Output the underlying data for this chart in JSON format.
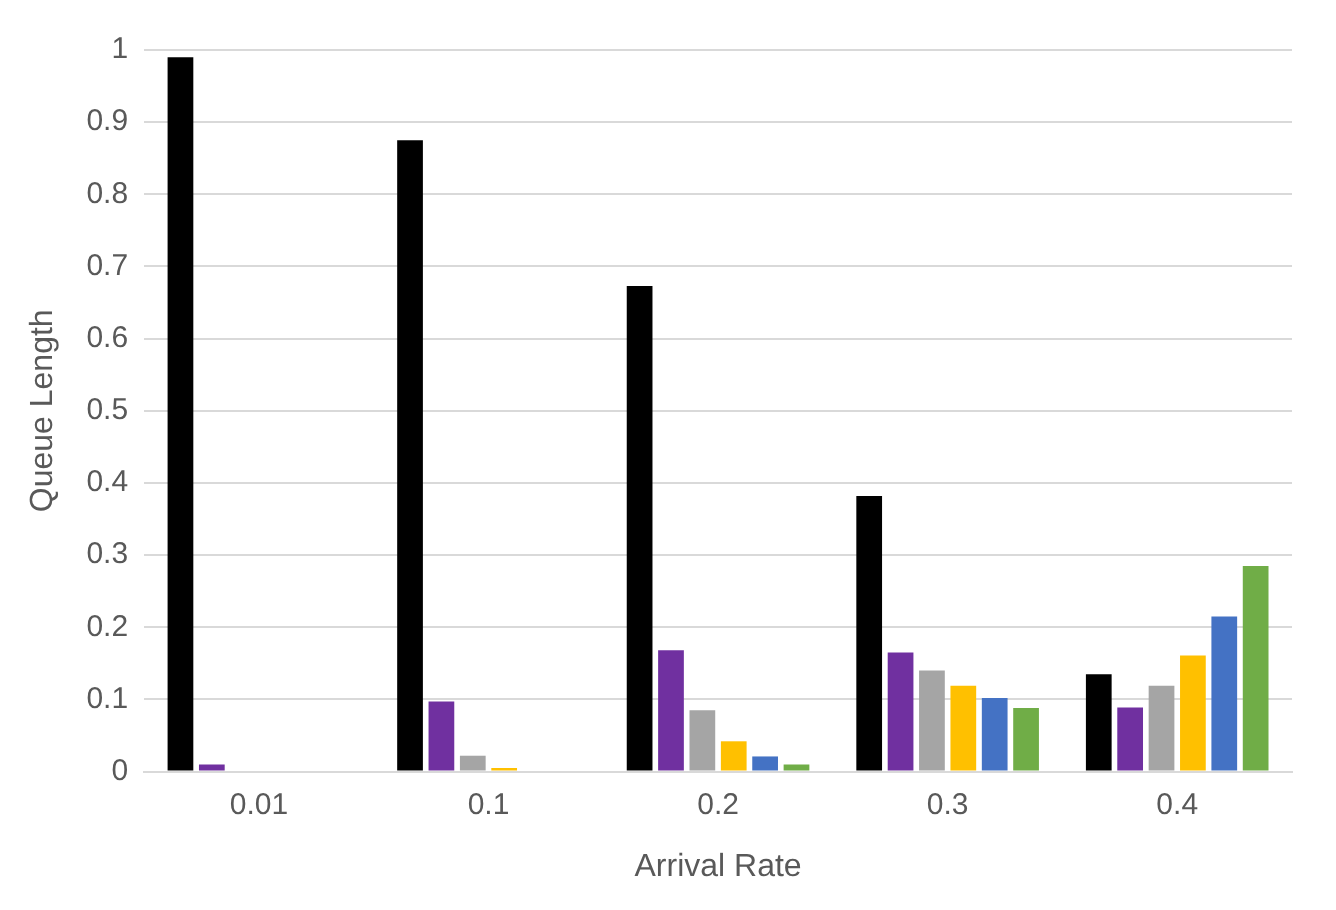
{
  "chart_data": {
    "type": "bar",
    "xlabel": "Arrival Rate",
    "ylabel": "Queue Length",
    "categories": [
      "0.01",
      "0.1",
      "0.2",
      "0.3",
      "0.4"
    ],
    "series": [
      {
        "color": "#000000",
        "values": [
          0.99,
          0.875,
          0.673,
          0.382,
          0.135
        ]
      },
      {
        "color": "#7030a0",
        "values": [
          0.01,
          0.097,
          0.168,
          0.165,
          0.089
        ]
      },
      {
        "color": "#a5a5a5",
        "values": [
          0,
          0.022,
          0.085,
          0.14,
          0.119
        ]
      },
      {
        "color": "#ffc000",
        "values": [
          0,
          0.005,
          0.042,
          0.119,
          0.161
        ]
      },
      {
        "color": "#4472c4",
        "values": [
          0,
          0,
          0.021,
          0.102,
          0.215
        ]
      },
      {
        "color": "#70ad47",
        "values": [
          0,
          0,
          0.01,
          0.088,
          0.285
        ]
      }
    ],
    "ylim": [
      0,
      1
    ],
    "yticks": [
      0,
      0.1,
      0.2,
      0.3,
      0.4,
      0.5,
      0.6,
      0.7,
      0.8,
      0.9,
      1
    ],
    "grid": "y",
    "legend": false
  }
}
